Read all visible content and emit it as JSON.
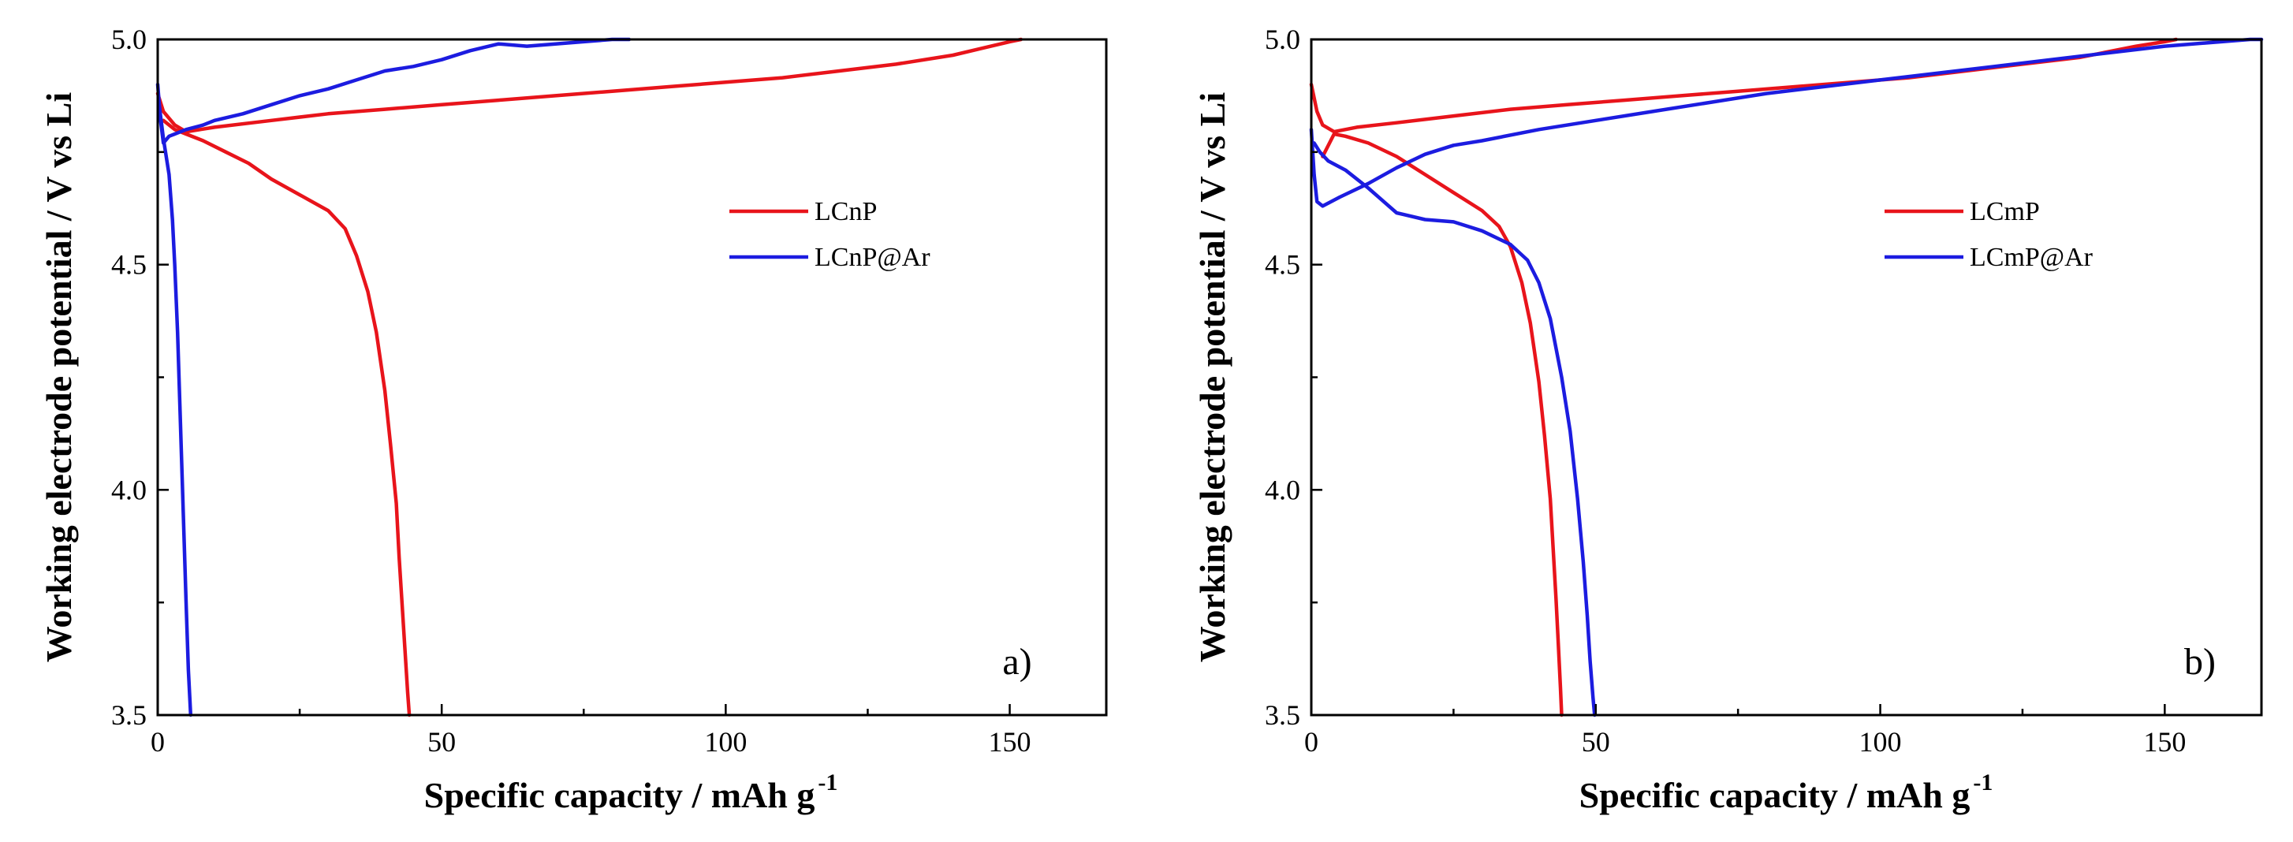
{
  "chart_data": [
    {
      "type": "line",
      "panel_label": "a)",
      "xlabel": "Specific capacity / mAh g",
      "xlabel_superscript": "-1",
      "ylabel": "Working electrode potential / V vs Li",
      "xlim": [
        0,
        167
      ],
      "ylim": [
        3.5,
        5.0
      ],
      "xticks": [
        0,
        50,
        100,
        150
      ],
      "xtick_labels": [
        "0",
        "50",
        "100",
        "150"
      ],
      "yticks": [
        3.5,
        4.0,
        4.5,
        5.0
      ],
      "ytick_labels": [
        "3.5",
        "4.0",
        "4.5",
        "5.0"
      ],
      "legend_position": "right-middle",
      "series": [
        {
          "name": "LCnP",
          "color": "#e8141b",
          "segments": [
            {
              "kind": "charge",
              "x": [
                0,
                1,
                3,
                5,
                10,
                20,
                30,
                40,
                50,
                60,
                70,
                80,
                90,
                100,
                110,
                120,
                130,
                140,
                145,
                150,
                152
              ],
              "y": [
                4.88,
                4.84,
                4.81,
                4.795,
                4.805,
                4.82,
                4.835,
                4.845,
                4.855,
                4.865,
                4.875,
                4.885,
                4.895,
                4.905,
                4.915,
                4.93,
                4.945,
                4.965,
                4.98,
                4.995,
                5.0
              ]
            },
            {
              "kind": "discharge",
              "x": [
                1,
                3,
                5,
                8,
                12,
                16,
                20,
                25,
                30,
                33,
                35,
                37,
                38.5,
                40,
                41,
                42,
                42.5,
                43,
                43.5,
                44,
                44.3
              ],
              "y": [
                4.82,
                4.8,
                4.79,
                4.775,
                4.75,
                4.725,
                4.69,
                4.655,
                4.62,
                4.58,
                4.52,
                4.44,
                4.35,
                4.22,
                4.1,
                3.97,
                3.85,
                3.75,
                3.65,
                3.55,
                3.5
              ]
            }
          ]
        },
        {
          "name": "LCnP@Ar",
          "color": "#1c1ce0",
          "segments": [
            {
              "kind": "charge",
              "x": [
                0,
                0.5,
                1,
                2,
                3,
                5,
                8,
                10,
                15,
                20,
                25,
                30,
                35,
                40,
                45,
                50,
                55,
                60,
                65,
                70,
                75,
                80,
                83
              ],
              "y": [
                4.9,
                4.82,
                4.77,
                4.785,
                4.79,
                4.8,
                4.81,
                4.82,
                4.835,
                4.855,
                4.875,
                4.89,
                4.91,
                4.93,
                4.94,
                4.955,
                4.975,
                4.99,
                4.985,
                4.99,
                4.995,
                5.0,
                5.0
              ]
            },
            {
              "kind": "discharge",
              "x": [
                0.3,
                1,
                2,
                2.6,
                3,
                3.5,
                4,
                4.5,
                5,
                5.4,
                5.8
              ],
              "y": [
                4.85,
                4.78,
                4.7,
                4.6,
                4.5,
                4.35,
                4.15,
                3.95,
                3.75,
                3.6,
                3.5
              ]
            }
          ]
        }
      ]
    },
    {
      "type": "line",
      "panel_label": "b)",
      "xlabel": "Specific capacity / mAh g",
      "xlabel_superscript": "-1",
      "ylabel": "Working electrode potential / V vs Li",
      "xlim": [
        0,
        167
      ],
      "ylim": [
        3.5,
        5.0
      ],
      "xticks": [
        0,
        50,
        100,
        150
      ],
      "xtick_labels": [
        "0",
        "50",
        "100",
        "150"
      ],
      "yticks": [
        3.5,
        4.0,
        4.5,
        5.0
      ],
      "ytick_labels": [
        "3.5",
        "4.0",
        "4.5",
        "5.0"
      ],
      "legend_position": "right-middle",
      "series": [
        {
          "name": "LCmP",
          "color": "#e8141b",
          "segments": [
            {
              "kind": "charge",
              "x": [
                0,
                1,
                2,
                4,
                8,
                15,
                25,
                35,
                45,
                55,
                65,
                75,
                85,
                95,
                105,
                115,
                125,
                135,
                145,
                150,
                152
              ],
              "y": [
                4.9,
                4.84,
                4.81,
                4.795,
                4.805,
                4.815,
                4.83,
                4.845,
                4.855,
                4.865,
                4.875,
                4.885,
                4.895,
                4.905,
                4.915,
                4.93,
                4.945,
                4.96,
                4.985,
                4.995,
                5.0
              ]
            },
            {
              "kind": "discharge",
              "x": [
                2,
                4,
                6,
                10,
                15,
                20,
                25,
                30,
                33,
                35,
                37,
                38.5,
                40,
                41,
                42,
                42.5,
                43,
                43.4,
                43.8,
                44
              ],
              "y": [
                4.74,
                4.79,
                4.785,
                4.77,
                4.74,
                4.7,
                4.66,
                4.62,
                4.585,
                4.54,
                4.46,
                4.37,
                4.24,
                4.12,
                3.98,
                3.87,
                3.76,
                3.66,
                3.56,
                3.5
              ]
            }
          ]
        },
        {
          "name": "LCmP@Ar",
          "color": "#1c1ce0",
          "segments": [
            {
              "kind": "charge",
              "x": [
                0,
                0.5,
                1,
                2,
                5,
                10,
                15,
                20,
                25,
                30,
                40,
                50,
                60,
                70,
                80,
                90,
                100,
                110,
                120,
                130,
                140,
                150,
                160,
                165,
                167
              ],
              "y": [
                4.8,
                4.7,
                4.64,
                4.63,
                4.65,
                4.68,
                4.715,
                4.745,
                4.765,
                4.775,
                4.8,
                4.82,
                4.84,
                4.86,
                4.88,
                4.895,
                4.91,
                4.925,
                4.94,
                4.955,
                4.97,
                4.985,
                4.995,
                5.0,
                5.0
              ]
            },
            {
              "kind": "discharge",
              "x": [
                0.5,
                1.5,
                3,
                6,
                10,
                15,
                20,
                25,
                30,
                35,
                38,
                40,
                42,
                44,
                45.5,
                46.8,
                47.8,
                48.5,
                49,
                49.5,
                49.8
              ],
              "y": [
                4.77,
                4.75,
                4.73,
                4.71,
                4.67,
                4.615,
                4.6,
                4.595,
                4.575,
                4.545,
                4.51,
                4.46,
                4.38,
                4.25,
                4.13,
                3.98,
                3.84,
                3.72,
                3.62,
                3.54,
                3.5
              ]
            }
          ]
        }
      ]
    }
  ]
}
